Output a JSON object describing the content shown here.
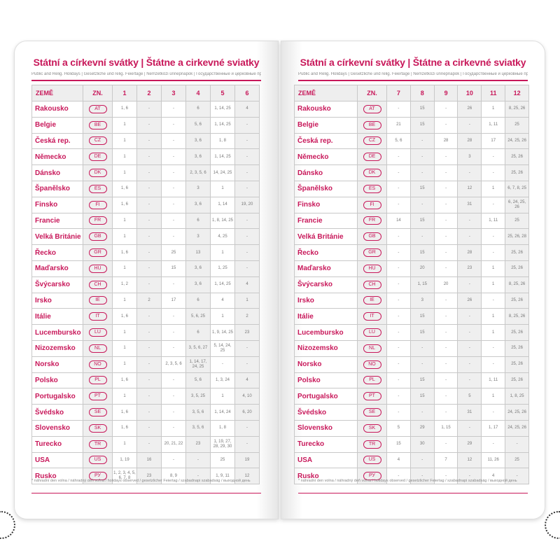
{
  "title": "Státní a církevní svátky | Štátne a cirkevné sviatky",
  "subtitle": "Public and Relig. Holidays | Gesetzliche und relig. Feiertage | Nemzetközi ünnepnapok | Государственные и церковные праздники",
  "footnote": "* náhradní den volna / náhradný deň voľna / holidays observed / gesetzlicher Feiertag / szabadnapi szabadság / выходной день",
  "colors": {
    "accent": "#c8185a"
  },
  "header": {
    "country": "ZEMĚ",
    "code": "ZN."
  },
  "left_months": [
    "1",
    "2",
    "3",
    "4",
    "5",
    "6"
  ],
  "right_months": [
    "7",
    "8",
    "9",
    "10",
    "11",
    "12"
  ],
  "countries": [
    {
      "name": "Rakousko",
      "code": "AT",
      "left": [
        "1, 6",
        "-",
        "-",
        "6",
        "1, 14, 25",
        "4"
      ],
      "right": [
        "-",
        "15",
        "-",
        "26",
        "1",
        "8, 25, 26"
      ]
    },
    {
      "name": "Belgie",
      "code": "BE",
      "left": [
        "1",
        "-",
        "-",
        "5, 6",
        "1, 14, 25",
        "-"
      ],
      "right": [
        "21",
        "15",
        "-",
        "-",
        "1, 11",
        "25"
      ]
    },
    {
      "name": "Česká rep.",
      "code": "CZ",
      "left": [
        "1",
        "-",
        "-",
        "3, 6",
        "1, 8",
        "-"
      ],
      "right": [
        "5, 6",
        "-",
        "28",
        "28",
        "17",
        "24, 25, 26"
      ]
    },
    {
      "name": "Německo",
      "code": "DE",
      "left": [
        "1",
        "-",
        "-",
        "3, 6",
        "1, 14, 25",
        "-"
      ],
      "right": [
        "-",
        "-",
        "-",
        "3",
        "-",
        "25, 26"
      ]
    },
    {
      "name": "Dánsko",
      "code": "DK",
      "left": [
        "1",
        "-",
        "-",
        "2, 3, 5, 6",
        "14, 24, 25",
        "-"
      ],
      "right": [
        "-",
        "-",
        "-",
        "-",
        "-",
        "25, 26"
      ]
    },
    {
      "name": "Španělsko",
      "code": "ES",
      "left": [
        "1, 6",
        "-",
        "-",
        "3",
        "1",
        "-"
      ],
      "right": [
        "-",
        "15",
        "-",
        "12",
        "1",
        "6, 7, 8, 25"
      ]
    },
    {
      "name": "Finsko",
      "code": "FI",
      "left": [
        "1, 6",
        "-",
        "-",
        "3, 6",
        "1, 14",
        "19, 20"
      ],
      "right": [
        "-",
        "-",
        "-",
        "31",
        "-",
        "6, 24, 25, 26"
      ]
    },
    {
      "name": "Francie",
      "code": "FR",
      "left": [
        "1",
        "-",
        "-",
        "6",
        "1, 8, 14, 25",
        "-"
      ],
      "right": [
        "14",
        "15",
        "-",
        "-",
        "1, 11",
        "25"
      ]
    },
    {
      "name": "Velká Británie",
      "code": "GB",
      "left": [
        "1",
        "-",
        "-",
        "3",
        "4, 25",
        "-"
      ],
      "right": [
        "-",
        "-",
        "-",
        "-",
        "-",
        "25, 26, 28"
      ]
    },
    {
      "name": "Řecko",
      "code": "GR",
      "left": [
        "1, 6",
        "-",
        "25",
        "13",
        "1",
        "-"
      ],
      "right": [
        "-",
        "15",
        "-",
        "28",
        "-",
        "25, 26"
      ]
    },
    {
      "name": "Maďarsko",
      "code": "HU",
      "left": [
        "1",
        "-",
        "15",
        "3, 6",
        "1, 25",
        "-"
      ],
      "right": [
        "-",
        "20",
        "-",
        "23",
        "1",
        "25, 26"
      ]
    },
    {
      "name": "Švýcarsko",
      "code": "CH",
      "left": [
        "1, 2",
        "-",
        "-",
        "3, 6",
        "1, 14, 25",
        "4"
      ],
      "right": [
        "-",
        "1, 15",
        "20",
        "-",
        "1",
        "8, 25, 26"
      ]
    },
    {
      "name": "Irsko",
      "code": "IE",
      "left": [
        "1",
        "2",
        "17",
        "6",
        "4",
        "1"
      ],
      "right": [
        "-",
        "3",
        "-",
        "26",
        "-",
        "25, 26"
      ]
    },
    {
      "name": "Itálie",
      "code": "IT",
      "left": [
        "1, 6",
        "-",
        "-",
        "5, 6, 25",
        "1",
        "2"
      ],
      "right": [
        "-",
        "15",
        "-",
        "-",
        "1",
        "8, 25, 26"
      ]
    },
    {
      "name": "Lucembursko",
      "code": "LU",
      "left": [
        "1",
        "-",
        "-",
        "6",
        "1, 9, 14, 25",
        "23"
      ],
      "right": [
        "-",
        "15",
        "-",
        "-",
        "1",
        "25, 26"
      ]
    },
    {
      "name": "Nizozemsko",
      "code": "NL",
      "left": [
        "1",
        "-",
        "-",
        "3, 5, 6, 27",
        "5, 14, 24, 25",
        "-"
      ],
      "right": [
        "-",
        "-",
        "-",
        "-",
        "-",
        "25, 26"
      ]
    },
    {
      "name": "Norsko",
      "code": "NO",
      "left": [
        "1",
        "-",
        "2, 3, 5, 6",
        "1, 14, 17, 24, 25",
        "-",
        "-"
      ],
      "right": [
        "-",
        "-",
        "-",
        "-",
        "-",
        "25, 26"
      ]
    },
    {
      "name": "Polsko",
      "code": "PL",
      "left": [
        "1, 6",
        "-",
        "-",
        "5, 6",
        "1, 3, 24",
        "4"
      ],
      "right": [
        "-",
        "15",
        "-",
        "-",
        "1, 11",
        "25, 26"
      ]
    },
    {
      "name": "Portugalsko",
      "code": "PT",
      "left": [
        "1",
        "-",
        "-",
        "3, 5, 25",
        "1",
        "4, 10"
      ],
      "right": [
        "-",
        "15",
        "-",
        "5",
        "1",
        "1, 8, 25"
      ]
    },
    {
      "name": "Švédsko",
      "code": "SE",
      "left": [
        "1, 6",
        "-",
        "-",
        "3, 5, 6",
        "1, 14, 24",
        "6, 20"
      ],
      "right": [
        "-",
        "-",
        "-",
        "31",
        "-",
        "24, 25, 26"
      ]
    },
    {
      "name": "Slovensko",
      "code": "SK",
      "left": [
        "1, 6",
        "-",
        "-",
        "3, 5, 6",
        "1, 8",
        "-"
      ],
      "right": [
        "5",
        "29",
        "1, 15",
        "-",
        "1, 17",
        "24, 25, 26"
      ]
    },
    {
      "name": "Turecko",
      "code": "TR",
      "left": [
        "1",
        "-",
        "20, 21, 22",
        "23",
        "1, 19, 27, 28, 29, 30",
        "-"
      ],
      "right": [
        "15",
        "30",
        "-",
        "29",
        "-",
        "-"
      ]
    },
    {
      "name": "USA",
      "code": "US",
      "left": [
        "1, 19",
        "16",
        "-",
        "-",
        "25",
        "19"
      ],
      "right": [
        "4",
        "-",
        "7",
        "12",
        "11, 26",
        "25"
      ]
    },
    {
      "name": "Rusko",
      "code": "РУ",
      "left": [
        "1, 2, 3, 4, 5, 6, 7, 8",
        "23",
        "8, 9",
        "-",
        "1, 9, 11",
        "12"
      ],
      "right": [
        "-",
        "-",
        "-",
        "-",
        "4",
        "-"
      ]
    }
  ]
}
